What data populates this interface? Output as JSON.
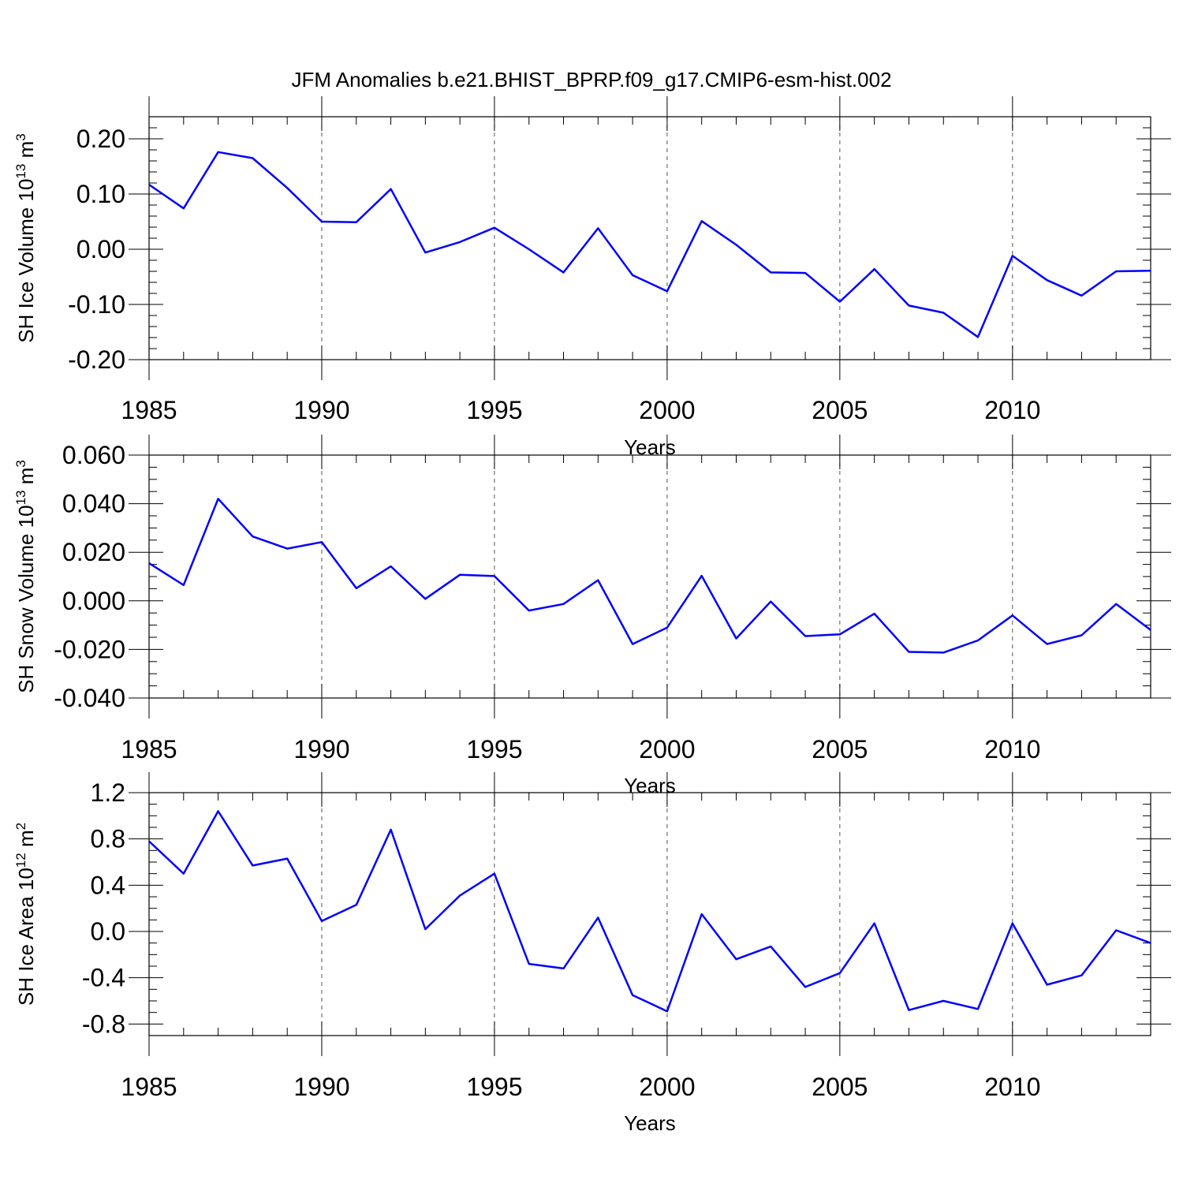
{
  "title": "JFM Anomalies b.e21.BHIST_BPRP.f09_g17.CMIP6-esm-hist.002",
  "line_color": "#0000ff",
  "chart_data": [
    {
      "type": "line",
      "ylabel": {
        "text": "SH Ice Volume 10",
        "sup": "13",
        "unit": " m",
        "unit_sup": "3"
      },
      "xlabel": "Years",
      "xlim": [
        1985,
        2014
      ],
      "ylim": [
        -0.2,
        0.24
      ],
      "x_ticks": [
        1985,
        1990,
        1995,
        2000,
        2005,
        2010
      ],
      "x_tick_labels": [
        "1985",
        "1990",
        "1995",
        "2000",
        "2005",
        "2010"
      ],
      "y_ticks": [
        -0.2,
        -0.1,
        0.0,
        0.1,
        0.2
      ],
      "y_tick_labels": [
        "-0.20",
        "-0.10",
        "0.00",
        "0.10",
        "0.20"
      ],
      "y_minor_step": 0.02,
      "vertical_grid": "dashed",
      "series": [
        {
          "x": [
            1985,
            1986,
            1987,
            1988,
            1989,
            1990,
            1991,
            1992,
            1993,
            1994,
            1995,
            1996,
            1997,
            1998,
            1999,
            2000,
            2001,
            2002,
            2003,
            2004,
            2005,
            2006,
            2007,
            2008,
            2009,
            2010,
            2011,
            2012,
            2013,
            2014
          ],
          "values": [
            0.117,
            0.074,
            0.176,
            0.165,
            0.111,
            0.05,
            0.049,
            0.109,
            -0.006,
            0.013,
            0.039,
            0.0,
            -0.042,
            0.038,
            -0.047,
            -0.076,
            0.051,
            0.008,
            -0.042,
            -0.043,
            -0.095,
            -0.036,
            -0.102,
            -0.115,
            -0.159,
            -0.012,
            -0.056,
            -0.084,
            -0.04,
            -0.039
          ]
        }
      ]
    },
    {
      "type": "line",
      "ylabel": {
        "text": "SH Snow Volume 10",
        "sup": "13",
        "unit": " m",
        "unit_sup": "3"
      },
      "xlabel": "Years",
      "xlim": [
        1985,
        2014
      ],
      "ylim": [
        -0.04,
        0.06
      ],
      "x_ticks": [
        1985,
        1990,
        1995,
        2000,
        2005,
        2010
      ],
      "x_tick_labels": [
        "1985",
        "1990",
        "1995",
        "2000",
        "2005",
        "2010"
      ],
      "y_ticks": [
        -0.04,
        -0.02,
        0.0,
        0.02,
        0.04,
        0.06
      ],
      "y_tick_labels": [
        "-0.040",
        "-0.020",
        "0.000",
        "0.020",
        "0.040",
        "0.060"
      ],
      "y_minor_step": 0.005,
      "vertical_grid": "dashed",
      "series": [
        {
          "x": [
            1985,
            1986,
            1987,
            1988,
            1989,
            1990,
            1991,
            1992,
            1993,
            1994,
            1995,
            1996,
            1997,
            1998,
            1999,
            2000,
            2001,
            2002,
            2003,
            2004,
            2005,
            2006,
            2007,
            2008,
            2009,
            2010,
            2011,
            2012,
            2013,
            2014
          ],
          "values": [
            0.0155,
            0.0065,
            0.042,
            0.0265,
            0.0215,
            0.0242,
            0.0052,
            0.0142,
            0.0008,
            0.0107,
            0.0102,
            -0.004,
            -0.0013,
            0.0085,
            -0.0178,
            -0.011,
            0.0103,
            -0.0155,
            -0.0003,
            -0.0145,
            -0.0138,
            -0.0053,
            -0.021,
            -0.0213,
            -0.0163,
            -0.006,
            -0.0178,
            -0.0142,
            -0.0013,
            -0.012
          ]
        }
      ]
    },
    {
      "type": "line",
      "ylabel": {
        "text": "SH Ice Area 10",
        "sup": "12",
        "unit": " m",
        "unit_sup": "2"
      },
      "xlabel": "Years",
      "xlim": [
        1985,
        2014
      ],
      "ylim": [
        -0.9,
        1.2
      ],
      "x_ticks": [
        1985,
        1990,
        1995,
        2000,
        2005,
        2010
      ],
      "x_tick_labels": [
        "1985",
        "1990",
        "1995",
        "2000",
        "2005",
        "2010"
      ],
      "y_ticks": [
        -0.8,
        -0.4,
        0.0,
        0.4,
        0.8,
        1.2
      ],
      "y_tick_labels": [
        "-0.8",
        "-0.4",
        "0.0",
        "0.4",
        "0.8",
        "1.2"
      ],
      "y_minor_step": 0.1,
      "vertical_grid": "dashed",
      "series": [
        {
          "x": [
            1985,
            1986,
            1987,
            1988,
            1989,
            1990,
            1991,
            1992,
            1993,
            1994,
            1995,
            1996,
            1997,
            1998,
            1999,
            2000,
            2001,
            2002,
            2003,
            2004,
            2005,
            2006,
            2007,
            2008,
            2009,
            2010,
            2011,
            2012,
            2013,
            2014
          ],
          "values": [
            0.78,
            0.5,
            1.04,
            0.57,
            0.63,
            0.09,
            0.23,
            0.88,
            0.02,
            0.31,
            0.5,
            -0.28,
            -0.32,
            0.12,
            -0.55,
            -0.69,
            0.15,
            -0.24,
            -0.13,
            -0.48,
            -0.36,
            0.07,
            -0.68,
            -0.6,
            -0.67,
            0.07,
            -0.46,
            -0.38,
            0.01,
            -0.1
          ]
        }
      ]
    }
  ]
}
